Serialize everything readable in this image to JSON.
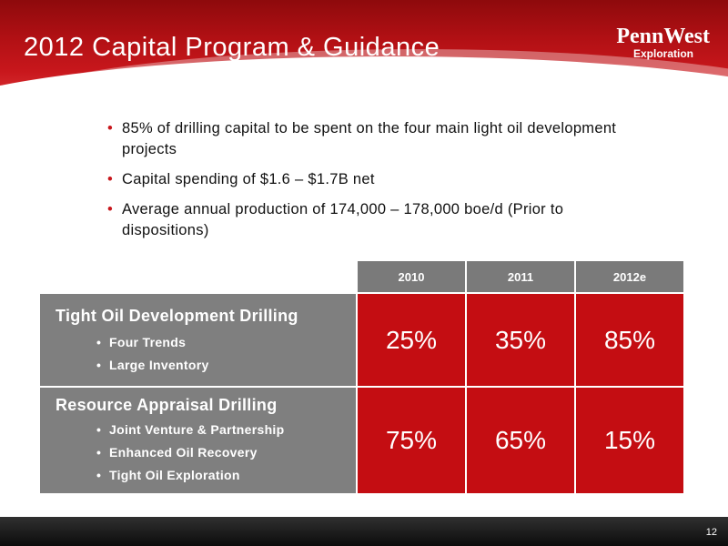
{
  "slide": {
    "title": "2012 Capital Program & Guidance",
    "page_number": "12"
  },
  "logo": {
    "line1": "PennWest",
    "line2": "Exploration"
  },
  "bullets": [
    "85% of drilling capital to be spent on the four main light oil development projects",
    "Capital spending of $1.6 – $1.7B net",
    "Average annual production of 174,000 – 178,000 boe/d (Prior to dispositions)"
  ],
  "table": {
    "columns": [
      "2010",
      "2011",
      "2012e"
    ],
    "rows": [
      {
        "label": "Tight Oil Development Drilling",
        "items": [
          "Four Trends",
          "Large Inventory"
        ],
        "values": [
          "25%",
          "35%",
          "85%"
        ]
      },
      {
        "label": "Resource Appraisal Drilling",
        "items": [
          "Joint Venture & Partnership",
          "Enhanced Oil Recovery",
          "Tight Oil Exploration"
        ],
        "values": [
          "75%",
          "65%",
          "15%"
        ]
      }
    ]
  },
  "colors": {
    "brand_red": "#c40d12",
    "gray": "#7f7f7f",
    "footer": "#1a1a1a"
  }
}
